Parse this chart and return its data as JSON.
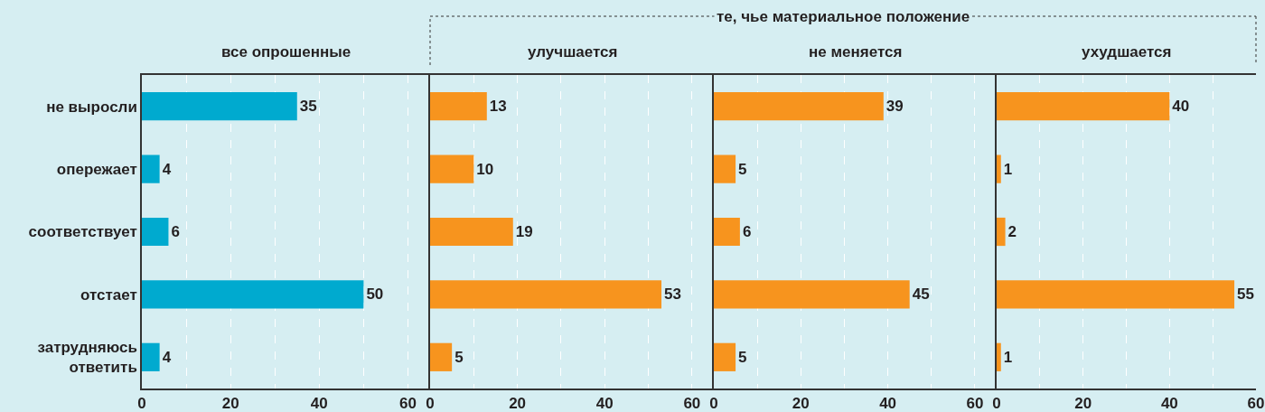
{
  "chart_data": [
    {
      "type": "bar",
      "orientation": "horizontal",
      "title": "все опрошенные",
      "categories": [
        "не выросли",
        "опережает",
        "соответствует",
        "отстает",
        "затрудняюсь ответить"
      ],
      "values": [
        35,
        4,
        6,
        50,
        4
      ],
      "color": "#00aacf",
      "xlim": [
        0,
        65
      ],
      "xticks": [
        0,
        {
          "value": 10,
          "label": null
        },
        20,
        {
          "value": 30,
          "label": null
        },
        40,
        {
          "value": 50,
          "label": null
        },
        60
      ],
      "grid": "x",
      "data_labels": true
    },
    {
      "type": "bar",
      "orientation": "horizontal",
      "title": "улучшается",
      "annotations": [
        "те, чье материальное положение"
      ],
      "categories": [
        "не выросли",
        "опережает",
        "соответствует",
        "отстает",
        "затрудняюсь ответить"
      ],
      "values": [
        13,
        10,
        19,
        53,
        5
      ],
      "color": "#f7941e",
      "xlim": [
        0,
        65
      ],
      "xticks": [
        0,
        {
          "value": 10,
          "label": null
        },
        20,
        {
          "value": 30,
          "label": null
        },
        40,
        {
          "value": 50,
          "label": null
        },
        60
      ],
      "grid": "x",
      "data_labels": true,
      "tick_labels": "x"
    },
    {
      "type": "bar",
      "orientation": "horizontal",
      "title": "не меняется",
      "categories": [
        "не выросли",
        "опережает",
        "соответствует",
        "отстает",
        "затрудняюсь ответить"
      ],
      "values": [
        39,
        5,
        6,
        45,
        5
      ],
      "color": "#f7941e",
      "xlim": [
        0,
        65
      ],
      "xticks": [
        0,
        {
          "value": 10,
          "label": null
        },
        20,
        {
          "value": 30,
          "label": null
        },
        40,
        {
          "value": 50,
          "label": null
        },
        60
      ],
      "grid": "x",
      "data_labels": true,
      "tick_labels": "x"
    },
    {
      "type": "bar",
      "orientation": "horizontal",
      "title": "ухудшается",
      "categories": [
        "не выросли",
        "опережает",
        "соответствует",
        "отстает",
        "затрудняюсь ответить"
      ],
      "values": [
        40,
        1,
        2,
        55,
        1
      ],
      "color": "#f7941e",
      "xlim": [
        0,
        60
      ],
      "xticks": [
        0,
        {
          "value": 10,
          "label": null
        },
        20,
        {
          "value": 30,
          "label": null
        },
        40,
        {
          "value": 50,
          "label": null
        },
        60
      ],
      "grid": "x",
      "data_labels": true,
      "tick_labels": "x"
    }
  ]
}
